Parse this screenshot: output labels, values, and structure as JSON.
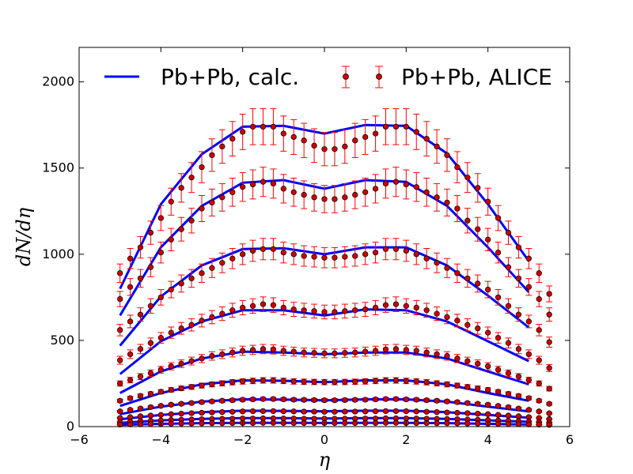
{
  "chart_data": {
    "type": "line",
    "xlabel": "η",
    "ylabel": "dN/dη",
    "xlim": [
      -6,
      6
    ],
    "ylim": [
      0,
      2200
    ],
    "x_ticks": [
      "−6",
      "−4",
      "−2",
      "0",
      "2",
      "4",
      "6"
    ],
    "y_ticks": [
      "0",
      "500",
      "1000",
      "1500",
      "2000"
    ],
    "grid": false,
    "legend_position": "top",
    "series": [
      {
        "name": "Pb+Pb, calc.",
        "kind": "line",
        "color": "#0000ff",
        "x": [
          -5,
          -4,
          -3,
          -2,
          -1,
          0,
          1,
          2,
          3,
          4,
          5
        ],
        "curves": [
          [
            800,
            1290,
            1580,
            1740,
            1745,
            1700,
            1750,
            1745,
            1585,
            1290,
            960
          ],
          [
            645,
            1040,
            1280,
            1415,
            1430,
            1380,
            1430,
            1420,
            1280,
            1040,
            780
          ],
          [
            470,
            755,
            935,
            1030,
            1035,
            1000,
            1040,
            1040,
            935,
            760,
            575
          ],
          [
            305,
            495,
            610,
            675,
            675,
            645,
            680,
            675,
            610,
            495,
            380
          ],
          [
            195,
            320,
            395,
            435,
            430,
            420,
            430,
            430,
            395,
            320,
            245
          ],
          [
            120,
            195,
            245,
            268,
            266,
            258,
            268,
            268,
            245,
            195,
            150
          ],
          [
            72,
            116,
            145,
            158,
            157,
            152,
            158,
            158,
            145,
            116,
            88
          ],
          [
            42,
            68,
            84,
            92,
            91,
            89,
            92,
            92,
            84,
            68,
            52
          ],
          [
            22,
            36,
            45,
            49,
            49,
            47,
            49,
            49,
            45,
            36,
            28
          ],
          [
            10,
            16,
            20,
            22,
            22,
            21,
            22,
            22,
            20,
            16,
            12
          ]
        ]
      },
      {
        "name": "Pb+Pb, ALICE",
        "kind": "errorbar",
        "color": "#ff0000",
        "marker_fill": "#cc0000",
        "x": [
          -5,
          -4.75,
          -4.5,
          -4.25,
          -4,
          -3.75,
          -3.5,
          -3.25,
          -3,
          -2.75,
          -2.5,
          -2.25,
          -2,
          -1.75,
          -1.5,
          -1.25,
          -1,
          -0.75,
          -0.5,
          -0.25,
          0,
          0.25,
          0.5,
          0.75,
          1,
          1.25,
          1.5,
          1.75,
          2,
          2.25,
          2.5,
          2.75,
          3,
          3.25,
          3.5,
          3.75,
          4,
          4.25,
          4.5,
          4.75,
          5,
          5.25,
          5.5
        ],
        "error_fraction": 0.06,
        "curves": [
          null,
          [
            740,
            810,
            860,
            925,
            1010,
            1085,
            1145,
            1195,
            1265,
            1300,
            1330,
            1360,
            1390,
            1405,
            1420,
            1410,
            1380,
            1360,
            1345,
            1330,
            1320,
            1320,
            1330,
            1345,
            1360,
            1380,
            1410,
            1420,
            1405,
            1390,
            1360,
            1330,
            1300,
            1265,
            1195,
            1145,
            1085,
            1010,
            925,
            860,
            810,
            740,
            650
          ],
          [
            560,
            610,
            650,
            700,
            750,
            795,
            830,
            860,
            890,
            920,
            950,
            975,
            1000,
            1020,
            1030,
            1030,
            1010,
            1000,
            990,
            985,
            980,
            980,
            985,
            990,
            1000,
            1010,
            1030,
            1030,
            1020,
            1000,
            975,
            950,
            920,
            890,
            860,
            830,
            795,
            750,
            700,
            650,
            610,
            560,
            490
          ],
          [
            385,
            420,
            450,
            485,
            515,
            545,
            570,
            590,
            615,
            635,
            655,
            675,
            690,
            700,
            710,
            705,
            690,
            680,
            675,
            670,
            665,
            665,
            670,
            675,
            680,
            690,
            705,
            710,
            700,
            690,
            675,
            655,
            635,
            615,
            590,
            570,
            545,
            515,
            485,
            450,
            420,
            385,
            340
          ],
          [
            250,
            270,
            290,
            310,
            330,
            350,
            365,
            380,
            395,
            410,
            420,
            430,
            440,
            445,
            450,
            448,
            440,
            435,
            430,
            428,
            425,
            425,
            428,
            430,
            435,
            440,
            448,
            450,
            445,
            440,
            430,
            420,
            410,
            395,
            380,
            365,
            350,
            330,
            310,
            290,
            270,
            250,
            220
          ],
          [
            150,
            165,
            178,
            190,
            202,
            213,
            222,
            230,
            238,
            245,
            251,
            257,
            262,
            265,
            268,
            268,
            265,
            262,
            260,
            259,
            258,
            258,
            259,
            260,
            262,
            265,
            268,
            268,
            265,
            262,
            257,
            251,
            245,
            238,
            230,
            222,
            213,
            202,
            190,
            178,
            165,
            150,
            132
          ],
          [
            88,
            97,
            105,
            113,
            120,
            127,
            132,
            137,
            142,
            146,
            150,
            153,
            156,
            158,
            160,
            160,
            158,
            156,
            155,
            154,
            153,
            153,
            154,
            155,
            156,
            158,
            160,
            160,
            158,
            156,
            153,
            150,
            146,
            142,
            137,
            132,
            127,
            120,
            113,
            105,
            97,
            88,
            77
          ],
          [
            50,
            55,
            60,
            64,
            68,
            72,
            75,
            78,
            80,
            82,
            84,
            86,
            88,
            89,
            90,
            90,
            89,
            88,
            87,
            87,
            86,
            86,
            87,
            87,
            88,
            89,
            90,
            90,
            89,
            88,
            86,
            84,
            82,
            80,
            78,
            75,
            72,
            68,
            64,
            60,
            55,
            50,
            44
          ],
          [
            26,
            29,
            32,
            34,
            36,
            38,
            40,
            41,
            43,
            44,
            45,
            46,
            47,
            47,
            48,
            48,
            47,
            47,
            46,
            46,
            46,
            46,
            46,
            46,
            47,
            47,
            48,
            48,
            47,
            47,
            46,
            45,
            44,
            43,
            41,
            40,
            38,
            36,
            34,
            32,
            29,
            26,
            23
          ],
          [
            12,
            13,
            14,
            15,
            16,
            17,
            18,
            18,
            19,
            20,
            20,
            21,
            21,
            21,
            22,
            22,
            21,
            21,
            21,
            21,
            21,
            21,
            21,
            21,
            21,
            21,
            22,
            22,
            21,
            21,
            21,
            20,
            20,
            19,
            18,
            18,
            17,
            16,
            15,
            14,
            13,
            12,
            10
          ]
        ],
        "top_curve": {
          "x": [
            -5,
            -4.75,
            -4.5,
            -4.25,
            -4,
            -3.75,
            -3.5,
            -3.25,
            -3,
            -2.75,
            -2.5,
            -2.25,
            -2,
            -1.75,
            -1.5,
            -1.25,
            -1,
            -0.75,
            -0.5,
            -0.25,
            0,
            0.25,
            0.5,
            0.75,
            1,
            1.25,
            1.5,
            1.75,
            2,
            2.25,
            2.5,
            2.75,
            3,
            3.25,
            3.5,
            3.75,
            4,
            4.25,
            4.5,
            4.75,
            5,
            5.25,
            5.5
          ],
          "y": [
            890,
            975,
            1040,
            1125,
            1210,
            1305,
            1385,
            1445,
            1505,
            1575,
            1625,
            1670,
            1710,
            1740,
            1740,
            1740,
            1700,
            1680,
            1660,
            1630,
            1610,
            1610,
            1625,
            1660,
            1680,
            1700,
            1740,
            1740,
            1740,
            1710,
            1670,
            1625,
            1575,
            1505,
            1445,
            1385,
            1305,
            1210,
            1125,
            1040,
            975,
            890,
            770
          ]
        }
      }
    ]
  }
}
